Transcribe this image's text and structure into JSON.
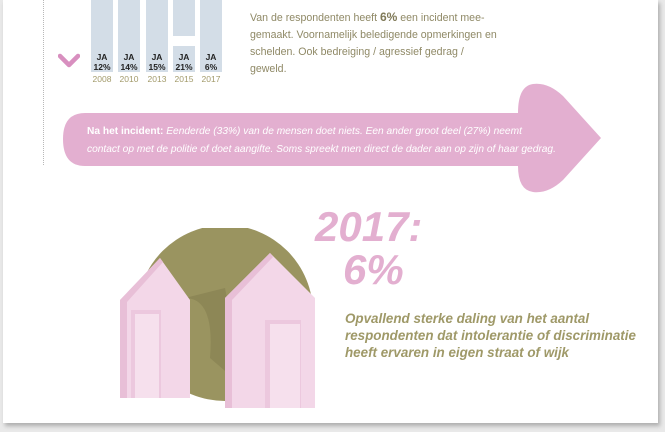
{
  "bars": [
    {
      "answer": "JA",
      "percent": "12%",
      "year": "2008"
    },
    {
      "answer": "JA",
      "percent": "14%",
      "year": "2010"
    },
    {
      "answer": "JA",
      "percent": "15%",
      "year": "2013"
    },
    {
      "answer": "JA",
      "percent": "21%",
      "year": "2015"
    },
    {
      "answer": "JA",
      "percent": "6%",
      "year": "2017"
    }
  ],
  "intro": {
    "before": "Van de respondenten heeft ",
    "highlight": "6%",
    "after": " een incident mee-gemaakt. Voornamelijk beledigende opmerkingen en schelden. Ook bedreiging / agressief gedrag / geweld."
  },
  "arrow": {
    "label": "Na het incident:",
    "text": " Eenderde (33%) van de mensen doet niets. Een ander groot deel (27%) neemt contact op met de politie of doet aangifte. Soms spreekt men direct de dader aan op zijn of haar gedrag."
  },
  "headline": {
    "year": "2017:",
    "value": "6%"
  },
  "description": "Opvallend sterke daling van het aantal respondenten dat intolerantie of discriminatie heeft ervaren in eigen straat of wijk",
  "colors": {
    "pink": "#e3afd0",
    "olive": "#9a9460",
    "bar": "#d3dde7"
  },
  "icons": {
    "chevron": "chevron-down-icon",
    "houses": "two-houses-icon",
    "arrow": "arrow-right-icon"
  }
}
